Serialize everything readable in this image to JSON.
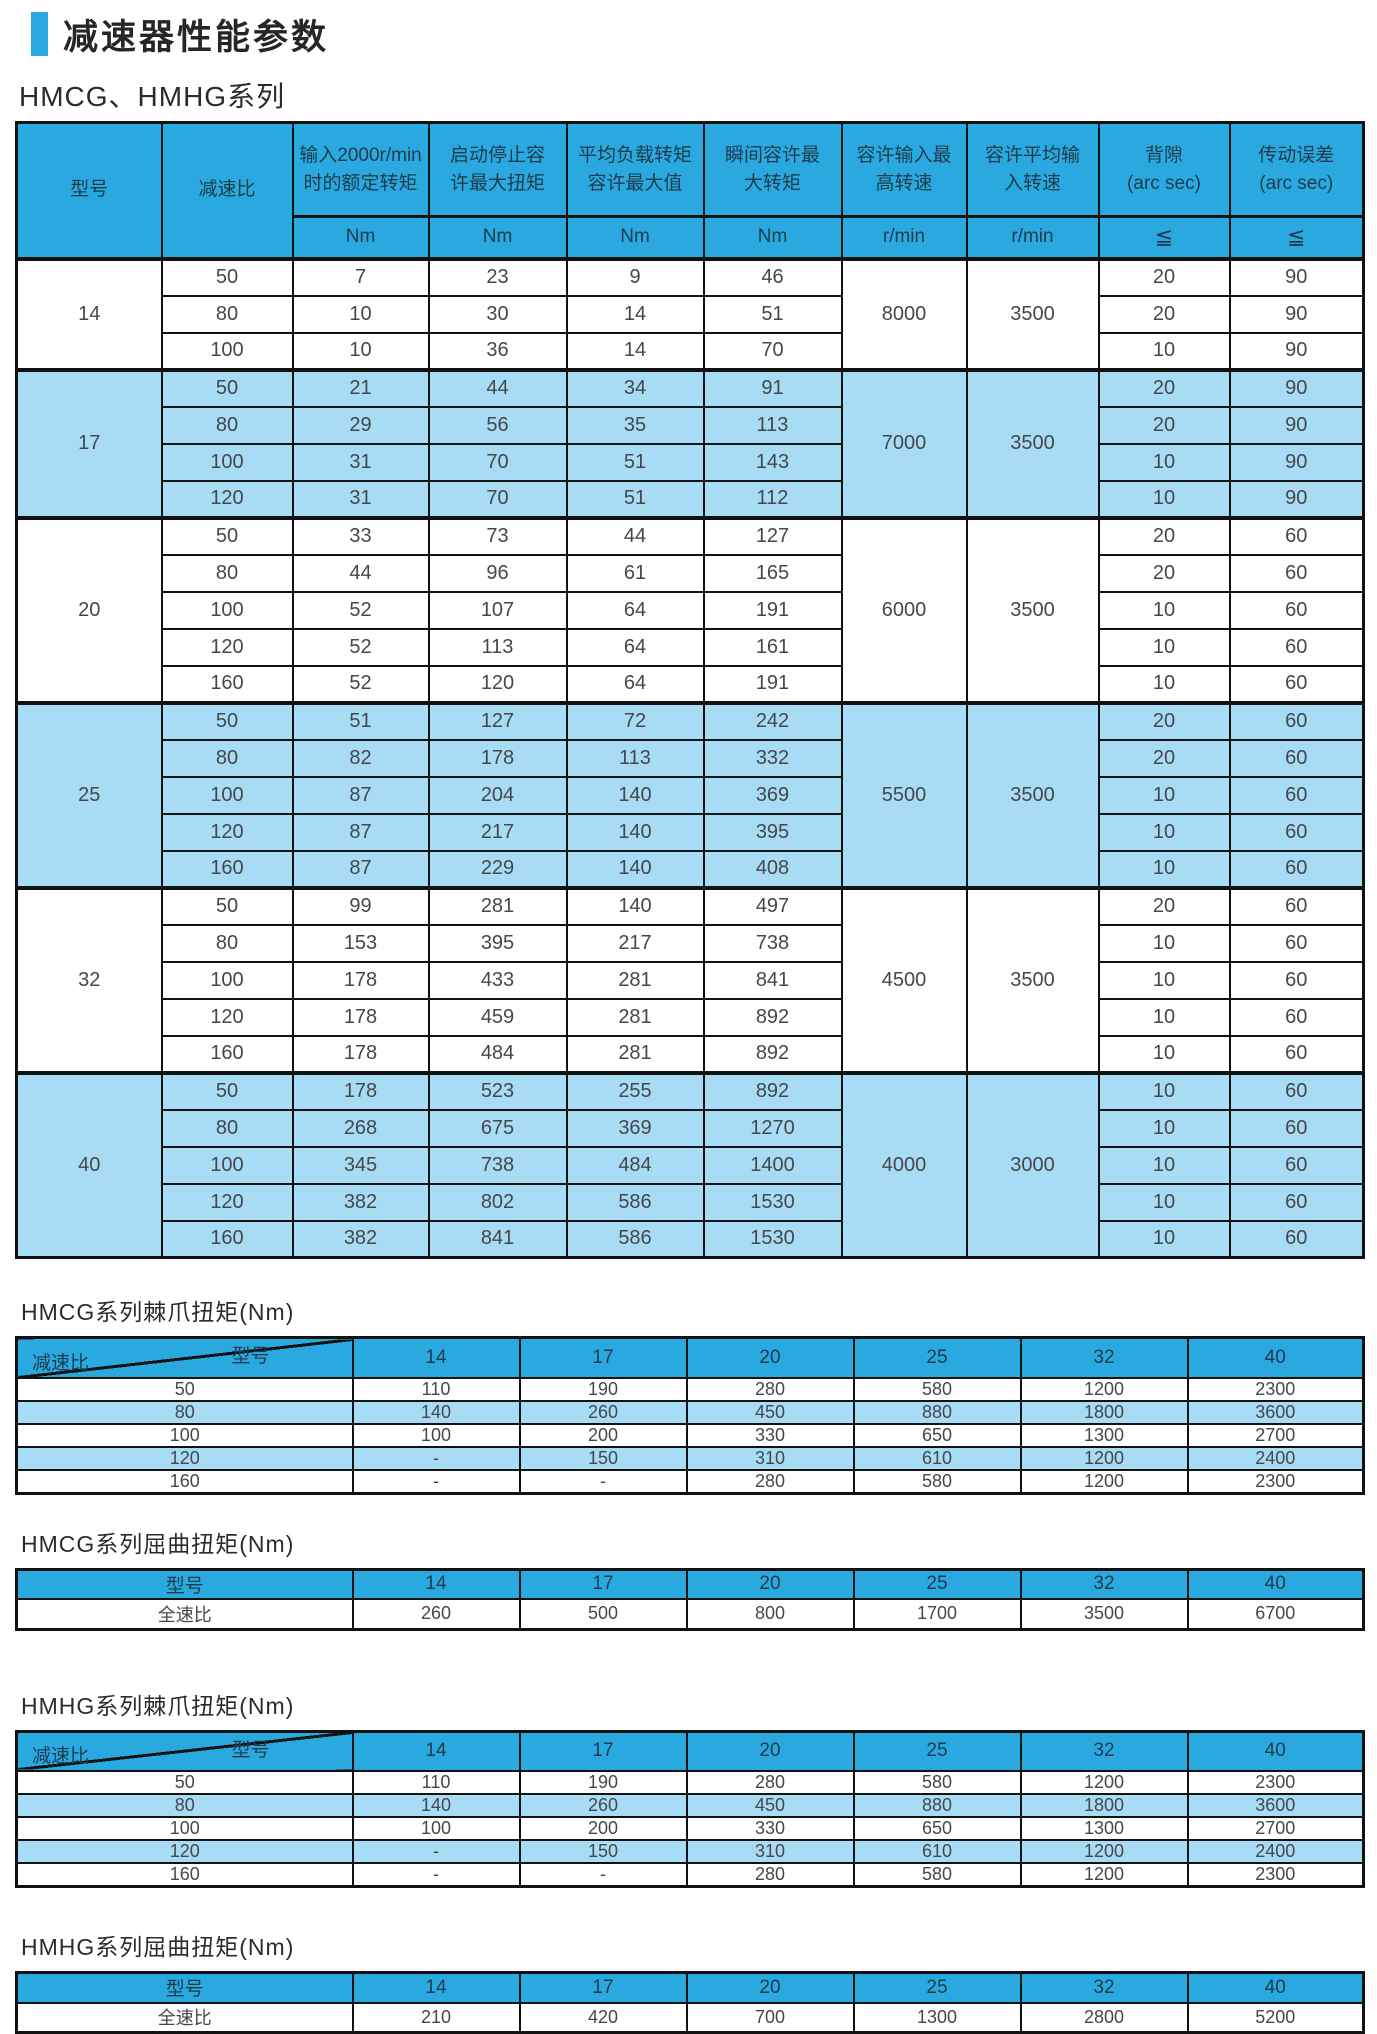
{
  "page": {
    "title": "减速器性能参数",
    "series_label": "HMCG、HMHG系列"
  },
  "colors": {
    "accent": "#2aa9e1",
    "row_shade": "#a8dbf4",
    "border": "#121212"
  },
  "main_table": {
    "col_model": "型号",
    "col_ratio": "减速比",
    "columns": [
      {
        "line1": "输入2000r/min",
        "line2": "时的额定转矩",
        "unit": "Nm"
      },
      {
        "line1": "启动停止容",
        "line2": "许最大扭矩",
        "unit": "Nm"
      },
      {
        "line1": "平均负载转矩",
        "line2": "容许最大值",
        "unit": "Nm"
      },
      {
        "line1": "瞬间容许最",
        "line2": "大转矩",
        "unit": "Nm"
      },
      {
        "line1": "容许输入最",
        "line2": "高转速",
        "unit": "r/min"
      },
      {
        "line1": "容许平均输",
        "line2": "入转速",
        "unit": "r/min"
      },
      {
        "line1": "背隙",
        "line2": "(arc sec)",
        "unit": "≦"
      },
      {
        "line1": "传动误差",
        "line2": "(arc sec)",
        "unit": "≦"
      }
    ],
    "groups": [
      {
        "model": "14",
        "max_speed": "8000",
        "avg_speed": "3500",
        "rows": [
          [
            "50",
            "7",
            "23",
            "9",
            "46",
            "20",
            "90"
          ],
          [
            "80",
            "10",
            "30",
            "14",
            "51",
            "20",
            "90"
          ],
          [
            "100",
            "10",
            "36",
            "14",
            "70",
            "10",
            "90"
          ]
        ]
      },
      {
        "model": "17",
        "max_speed": "7000",
        "avg_speed": "3500",
        "rows": [
          [
            "50",
            "21",
            "44",
            "34",
            "91",
            "20",
            "90"
          ],
          [
            "80",
            "29",
            "56",
            "35",
            "113",
            "20",
            "90"
          ],
          [
            "100",
            "31",
            "70",
            "51",
            "143",
            "10",
            "90"
          ],
          [
            "120",
            "31",
            "70",
            "51",
            "112",
            "10",
            "90"
          ]
        ]
      },
      {
        "model": "20",
        "max_speed": "6000",
        "avg_speed": "3500",
        "rows": [
          [
            "50",
            "33",
            "73",
            "44",
            "127",
            "20",
            "60"
          ],
          [
            "80",
            "44",
            "96",
            "61",
            "165",
            "20",
            "60"
          ],
          [
            "100",
            "52",
            "107",
            "64",
            "191",
            "10",
            "60"
          ],
          [
            "120",
            "52",
            "113",
            "64",
            "161",
            "10",
            "60"
          ],
          [
            "160",
            "52",
            "120",
            "64",
            "191",
            "10",
            "60"
          ]
        ]
      },
      {
        "model": "25",
        "max_speed": "5500",
        "avg_speed": "3500",
        "rows": [
          [
            "50",
            "51",
            "127",
            "72",
            "242",
            "20",
            "60"
          ],
          [
            "80",
            "82",
            "178",
            "113",
            "332",
            "20",
            "60"
          ],
          [
            "100",
            "87",
            "204",
            "140",
            "369",
            "10",
            "60"
          ],
          [
            "120",
            "87",
            "217",
            "140",
            "395",
            "10",
            "60"
          ],
          [
            "160",
            "87",
            "229",
            "140",
            "408",
            "10",
            "60"
          ]
        ]
      },
      {
        "model": "32",
        "max_speed": "4500",
        "avg_speed": "3500",
        "rows": [
          [
            "50",
            "99",
            "281",
            "140",
            "497",
            "20",
            "60"
          ],
          [
            "80",
            "153",
            "395",
            "217",
            "738",
            "10",
            "60"
          ],
          [
            "100",
            "178",
            "433",
            "281",
            "841",
            "10",
            "60"
          ],
          [
            "120",
            "178",
            "459",
            "281",
            "892",
            "10",
            "60"
          ],
          [
            "160",
            "178",
            "484",
            "281",
            "892",
            "10",
            "60"
          ]
        ]
      },
      {
        "model": "40",
        "max_speed": "4000",
        "avg_speed": "3000",
        "rows": [
          [
            "50",
            "178",
            "523",
            "255",
            "892",
            "10",
            "60"
          ],
          [
            "80",
            "268",
            "675",
            "369",
            "1270",
            "10",
            "60"
          ],
          [
            "100",
            "345",
            "738",
            "484",
            "1400",
            "10",
            "60"
          ],
          [
            "120",
            "382",
            "802",
            "586",
            "1530",
            "10",
            "60"
          ],
          [
            "160",
            "382",
            "841",
            "586",
            "1530",
            "10",
            "60"
          ]
        ]
      }
    ]
  },
  "sub_tables": [
    {
      "title": "HMCG系列棘爪扭矩(Nm)",
      "diagonal": true,
      "corner_top": "型号",
      "corner_bottom": "减速比",
      "columns": [
        "14",
        "17",
        "20",
        "25",
        "32",
        "40"
      ],
      "rows": [
        {
          "label": "50",
          "values": [
            "110",
            "190",
            "280",
            "580",
            "1200",
            "2300"
          ]
        },
        {
          "label": "80",
          "values": [
            "140",
            "260",
            "450",
            "880",
            "1800",
            "3600"
          ]
        },
        {
          "label": "100",
          "values": [
            "100",
            "200",
            "330",
            "650",
            "1300",
            "2700"
          ]
        },
        {
          "label": "120",
          "values": [
            "-",
            "150",
            "310",
            "610",
            "1200",
            "2400"
          ]
        },
        {
          "label": "160",
          "values": [
            "-",
            "-",
            "280",
            "580",
            "1200",
            "2300"
          ]
        }
      ]
    },
    {
      "title": "HMCG系列屈曲扭矩(Nm)",
      "diagonal": false,
      "header_label": "型号",
      "columns": [
        "14",
        "17",
        "20",
        "25",
        "32",
        "40"
      ],
      "rows": [
        {
          "label": "全速比",
          "values": [
            "260",
            "500",
            "800",
            "1700",
            "3500",
            "6700"
          ]
        }
      ]
    },
    {
      "title": "HMHG系列棘爪扭矩(Nm)",
      "diagonal": true,
      "corner_top": "型号",
      "corner_bottom": "减速比",
      "columns": [
        "14",
        "17",
        "20",
        "25",
        "32",
        "40"
      ],
      "rows": [
        {
          "label": "50",
          "values": [
            "110",
            "190",
            "280",
            "580",
            "1200",
            "2300"
          ]
        },
        {
          "label": "80",
          "values": [
            "140",
            "260",
            "450",
            "880",
            "1800",
            "3600"
          ]
        },
        {
          "label": "100",
          "values": [
            "100",
            "200",
            "330",
            "650",
            "1300",
            "2700"
          ]
        },
        {
          "label": "120",
          "values": [
            "-",
            "150",
            "310",
            "610",
            "1200",
            "2400"
          ]
        },
        {
          "label": "160",
          "values": [
            "-",
            "-",
            "280",
            "580",
            "1200",
            "2300"
          ]
        }
      ]
    },
    {
      "title": "HMHG系列屈曲扭矩(Nm)",
      "diagonal": false,
      "header_label": "型号",
      "columns": [
        "14",
        "17",
        "20",
        "25",
        "32",
        "40"
      ],
      "rows": [
        {
          "label": "全速比",
          "values": [
            "210",
            "420",
            "700",
            "1300",
            "2800",
            "5200"
          ]
        }
      ]
    }
  ]
}
